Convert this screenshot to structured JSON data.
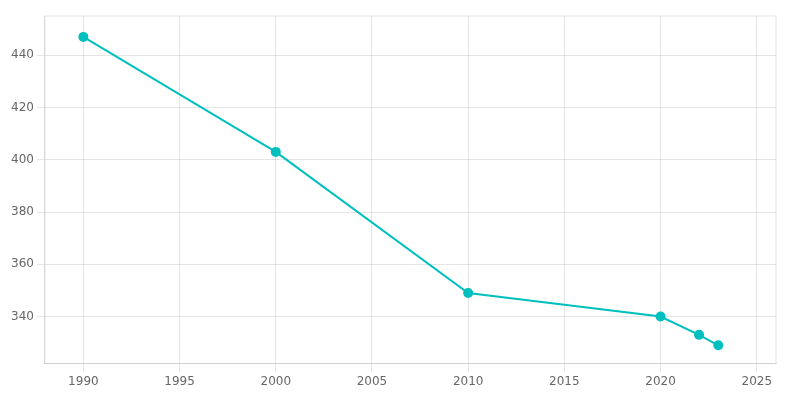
{
  "chart_data": {
    "type": "line",
    "x": [
      1990,
      2000,
      2010,
      2020,
      2022,
      2023
    ],
    "values": [
      447,
      403,
      349,
      340,
      333,
      329
    ],
    "color": "#00BFBF",
    "marker": "circle",
    "xlim": [
      1988,
      2026
    ],
    "ylim": [
      322,
      455
    ],
    "xticks": [
      1990,
      1995,
      2000,
      2005,
      2010,
      2015,
      2020,
      2025
    ],
    "yticks": [
      340,
      360,
      380,
      400,
      420,
      440
    ],
    "grid": true
  }
}
